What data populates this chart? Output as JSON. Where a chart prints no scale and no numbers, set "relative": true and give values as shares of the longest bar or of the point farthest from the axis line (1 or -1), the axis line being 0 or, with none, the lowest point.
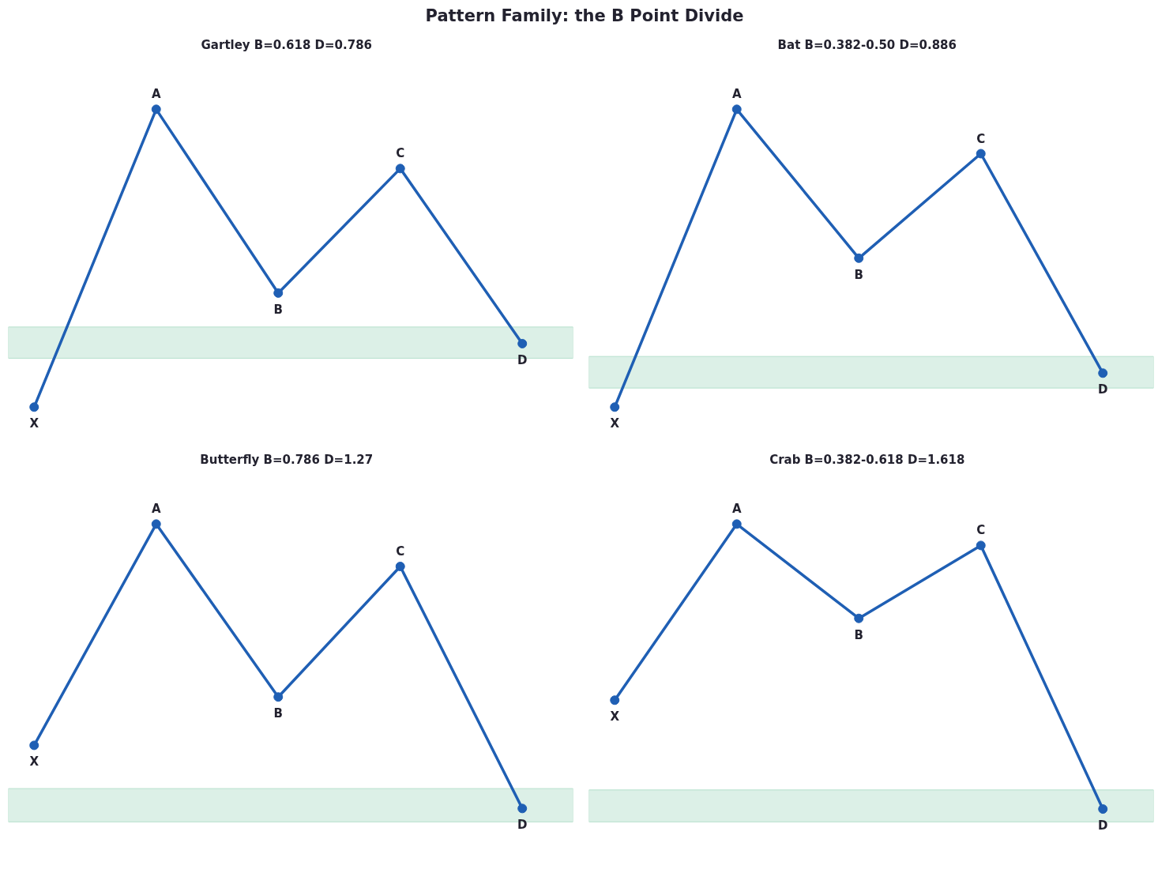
{
  "chart_data": [
    {
      "type": "line",
      "title": "Gartley  B=0.618  D=0.786",
      "relative": true,
      "marker": "circle",
      "categories": [
        null,
        null,
        null,
        null,
        null
      ],
      "series": [
        {
          "color": "#1f5fb4",
          "values": [
            0,
            1,
            0.383,
            0.801,
            0.213
          ]
        }
      ],
      "bands": [
        {
          "axis": "y",
          "from": 0.164,
          "to": 0.269,
          "color": "#dcf0e7"
        }
      ],
      "annotations": [
        "Pattern Family: the B Point Divide",
        {
          "text": "X",
          "y": 0
        },
        {
          "text": "A",
          "y": 1
        },
        {
          "text": "B",
          "y": 0.383
        },
        {
          "text": "C",
          "y": 0.801
        },
        {
          "text": "D",
          "y": 0.213
        }
      ]
    },
    {
      "type": "line",
      "title": "Bat  B=0.382-0.50  D=0.886",
      "relative": true,
      "marker": "circle",
      "categories": [
        null,
        null,
        null,
        null,
        null
      ],
      "series": [
        {
          "color": "#1f5fb4",
          "values": [
            0,
            1,
            0.5,
            0.851,
            0.114
          ]
        }
      ],
      "bands": [
        {
          "axis": "y",
          "from": 0.064,
          "to": 0.17,
          "color": "#dcf0e7"
        }
      ],
      "annotations": [
        {
          "text": "X",
          "y": 0
        },
        {
          "text": "A",
          "y": 1
        },
        {
          "text": "B",
          "y": 0.5
        },
        {
          "text": "C",
          "y": 0.851
        },
        {
          "text": "D",
          "y": 0.114
        }
      ]
    },
    {
      "type": "line",
      "title": "Butterfly  B=0.786  D=1.27",
      "relative": true,
      "marker": "circle",
      "categories": [
        null,
        null,
        null,
        null,
        null
      ],
      "series": [
        {
          "color": "#1f5fb4",
          "values": [
            0.222,
            1,
            0.392,
            0.851,
            0
          ]
        }
      ],
      "bands": [
        {
          "axis": "y",
          "from": -0.047,
          "to": 0.07,
          "color": "#dcf0e7"
        }
      ],
      "annotations": [
        {
          "text": "X",
          "y": 0.222
        },
        {
          "text": "A",
          "y": 1
        },
        {
          "text": "B",
          "y": 0.392
        },
        {
          "text": "C",
          "y": 0.851
        },
        {
          "text": "D",
          "y": 0
        }
      ]
    },
    {
      "type": "line",
      "title": "Crab  B=0.382-0.618  D=1.618",
      "relative": true,
      "marker": "circle",
      "categories": [
        null,
        null,
        null,
        null,
        null
      ],
      "series": [
        {
          "color": "#1f5fb4",
          "values": [
            0.382,
            1,
            0.669,
            0.925,
            0
          ]
        }
      ],
      "bands": [
        {
          "axis": "y",
          "from": -0.045,
          "to": 0.067,
          "color": "#dcf0e7"
        }
      ],
      "annotations": [
        {
          "text": "X",
          "y": 0.382
        },
        {
          "text": "A",
          "y": 1
        },
        {
          "text": "B",
          "y": 0.669
        },
        {
          "text": "C",
          "y": 0.925
        },
        {
          "text": "D",
          "y": 0
        }
      ]
    }
  ]
}
